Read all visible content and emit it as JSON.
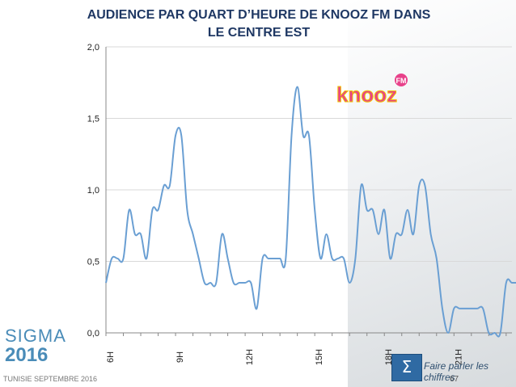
{
  "chart_data": {
    "type": "line",
    "title": "AUDIENCE PAR QUART D’HEURE DE KNOOZ FM DANS LE CENTRE EST",
    "xlabel": "",
    "ylabel": "",
    "ylim": [
      0,
      2
    ],
    "y_ticks": [
      "0,0",
      "0,5",
      "1,0",
      "1,5",
      "2,0"
    ],
    "x_tick_labels": [
      "6H",
      "9H",
      "12H",
      "15H",
      "18H",
      "21H"
    ],
    "x_tick_positions": [
      0,
      12,
      24,
      36,
      48,
      60
    ],
    "x_range": [
      0,
      70
    ],
    "grid": true,
    "series": [
      {
        "values": [
          0.35,
          0.52,
          0.52,
          0.52,
          0.86,
          0.69,
          0.69,
          0.52,
          0.86,
          0.86,
          1.03,
          1.03,
          1.38,
          1.38,
          0.86,
          0.69,
          0.52,
          0.35,
          0.35,
          0.35,
          0.69,
          0.52,
          0.35,
          0.35,
          0.35,
          0.35,
          0.17,
          0.52,
          0.52,
          0.52,
          0.52,
          0.52,
          1.38,
          1.72,
          1.38,
          1.38,
          0.86,
          0.52,
          0.69,
          0.52,
          0.52,
          0.52,
          0.35,
          0.52,
          1.03,
          0.86,
          0.86,
          0.69,
          0.86,
          0.52,
          0.69,
          0.69,
          0.86,
          0.69,
          1.03,
          1.03,
          0.69,
          0.52,
          0.17,
          0.0,
          0.17,
          0.17,
          0.17,
          0.17,
          0.17,
          0.17,
          0.0,
          0.0,
          0.0,
          0.35,
          0.35,
          0.35
        ]
      }
    ],
    "line_color": "#6a9fd3"
  },
  "footer": {
    "left": "TUNISIE SEPTEMBRE 2016",
    "page": "67",
    "tagline": "Faire parler les chiffres"
  },
  "logos": {
    "sigma_name": "SIGMA",
    "sigma_year": "2016",
    "knooz_text": "knooz",
    "knooz_badge": "FM"
  }
}
